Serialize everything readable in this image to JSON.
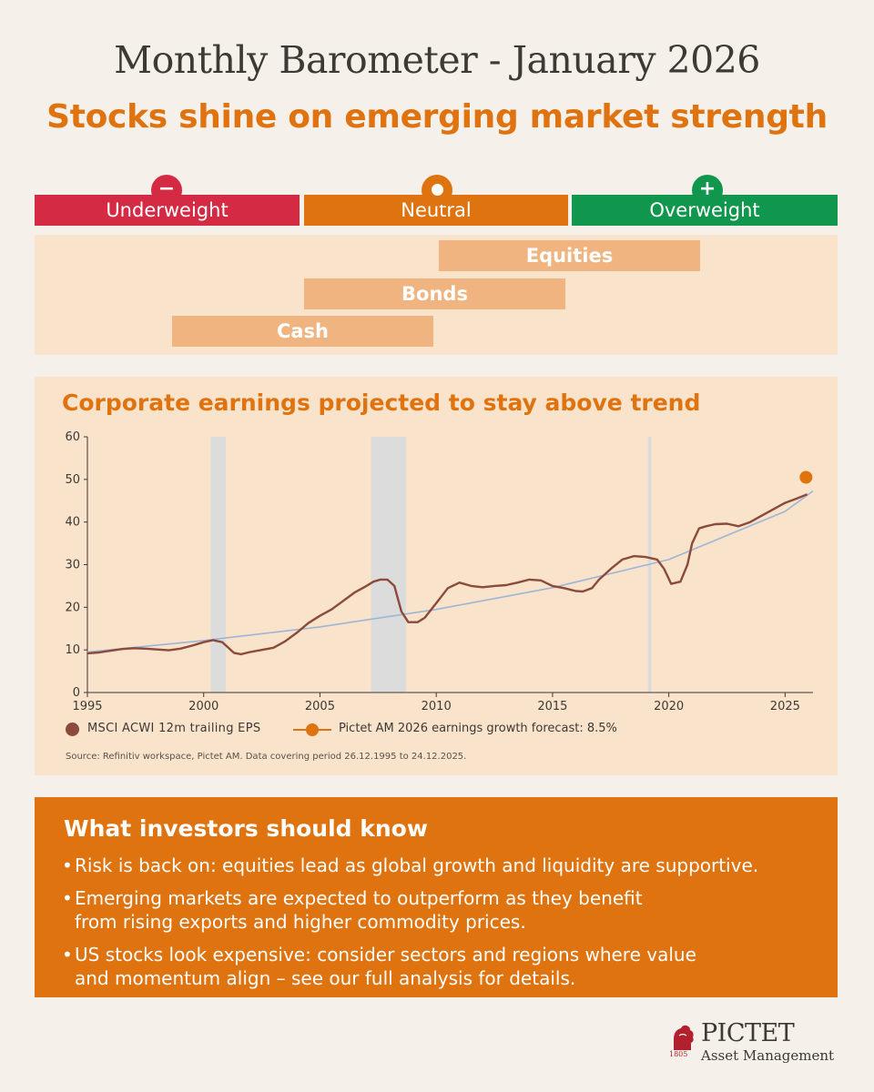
{
  "header": {
    "title": "Monthly Barometer - January 2026",
    "subtitle": "Stocks shine on emerging market strength"
  },
  "barometer": {
    "bands": [
      {
        "label": "Underweight",
        "symbol": "−",
        "color": "#d42a44"
      },
      {
        "label": "Neutral",
        "symbol": "●",
        "color": "#de7310"
      },
      {
        "label": "Overweight",
        "symbol": "+",
        "color": "#10974d"
      }
    ],
    "assets": [
      {
        "label": "Equities",
        "position": "between neutral and overweight"
      },
      {
        "label": "Bonds",
        "position": "neutral"
      },
      {
        "label": "Cash",
        "position": "between underweight and neutral"
      }
    ]
  },
  "chart_panel": {
    "title": "Corporate earnings projected to stay above trend",
    "source": "Source: Refinitiv workspace, Pictet AM. Data covering period 26.12.1995 to 24.12.2025."
  },
  "chart_data": {
    "type": "line",
    "title": "Corporate earnings projected to stay above trend",
    "xlabel": "",
    "ylabel": "",
    "xlim": [
      1995,
      2026.2
    ],
    "ylim": [
      0,
      60
    ],
    "x_ticks": [
      "1995",
      "2000",
      "2005",
      "2010",
      "2015",
      "2020",
      "2025"
    ],
    "y_ticks": [
      "0",
      "10",
      "20",
      "30",
      "40",
      "50",
      "60"
    ],
    "grid": false,
    "legend_position": "bottom-left",
    "shaded_periods": [
      [
        2000.3,
        2000.95
      ],
      [
        2007.2,
        2008.7
      ],
      [
        2019.1,
        2019.25
      ]
    ],
    "series": [
      {
        "name": "MSCI ACWI 12m trailing EPS",
        "color": "#8b4a3a",
        "x": [
          1995.0,
          1995.5,
          1996.0,
          1996.5,
          1997.0,
          1997.5,
          1998.0,
          1998.5,
          1999.0,
          1999.5,
          2000.0,
          2000.4,
          2000.8,
          2001.0,
          2001.3,
          2001.6,
          2002.0,
          2002.5,
          2003.0,
          2003.5,
          2004.0,
          2004.5,
          2005.0,
          2005.5,
          2006.0,
          2006.5,
          2007.0,
          2007.3,
          2007.6,
          2007.9,
          2008.2,
          2008.5,
          2008.8,
          2009.2,
          2009.5,
          2010.0,
          2010.5,
          2011.0,
          2011.5,
          2012.0,
          2012.5,
          2013.0,
          2013.5,
          2014.0,
          2014.5,
          2015.0,
          2015.5,
          2016.0,
          2016.3,
          2016.7,
          2017.0,
          2017.5,
          2018.0,
          2018.5,
          2019.0,
          2019.5,
          2019.8,
          2020.1,
          2020.5,
          2020.8,
          2021.0,
          2021.3,
          2021.6,
          2022.0,
          2022.5,
          2023.0,
          2023.5,
          2024.0,
          2024.5,
          2025.0,
          2025.5,
          2025.95
        ],
        "values": [
          9.2,
          9.4,
          9.8,
          10.2,
          10.4,
          10.3,
          10.1,
          9.9,
          10.3,
          11.0,
          11.8,
          12.3,
          11.8,
          10.8,
          9.3,
          9.0,
          9.5,
          10.0,
          10.5,
          12.0,
          14.0,
          16.3,
          18.0,
          19.5,
          21.5,
          23.5,
          25.0,
          26.0,
          26.5,
          26.5,
          25.0,
          19.0,
          16.5,
          16.5,
          17.5,
          21.0,
          24.5,
          25.8,
          25.0,
          24.7,
          25.0,
          25.2,
          25.8,
          26.5,
          26.3,
          25.0,
          24.5,
          23.8,
          23.7,
          24.5,
          26.5,
          29.0,
          31.2,
          32.0,
          31.8,
          31.2,
          29.0,
          25.5,
          26.0,
          30.0,
          35.0,
          38.5,
          39.0,
          39.5,
          39.6,
          39.0,
          40.0,
          41.5,
          43.0,
          44.5,
          45.5,
          46.5
        ]
      },
      {
        "name": "trend",
        "color": "#9db6d6",
        "x": [
          1995.0,
          2000.0,
          2005.0,
          2010.0,
          2015.0,
          2020.0,
          2025.0,
          2026.2
        ],
        "values": [
          9.5,
          12.2,
          15.4,
          19.5,
          24.6,
          31.2,
          42.5,
          47.3
        ]
      },
      {
        "name": "Pictet AM 2026 earnings growth forecast: 8.5%",
        "color": "#de7310",
        "x": [
          2025.9
        ],
        "values": [
          50.5
        ]
      }
    ]
  },
  "legend": {
    "items": [
      {
        "label": "MSCI ACWI 12m trailing EPS",
        "color": "#8b4a3a"
      },
      {
        "label": "Pictet AM 2026 earnings growth forecast: 8.5%",
        "color": "#de7310"
      }
    ]
  },
  "investors": {
    "title": "What investors should know",
    "bullets": [
      "Risk is back on: equities lead as global growth and liquidity are supportive.",
      "Emerging markets are expected to outperform as they benefit from rising exports and higher commodity prices.",
      "US stocks look expensive: consider sectors and regions where value and momentum align – see our full analysis for details."
    ]
  },
  "logo": {
    "name": "PICTET",
    "subtitle": "Asset Management",
    "year": "1805"
  }
}
